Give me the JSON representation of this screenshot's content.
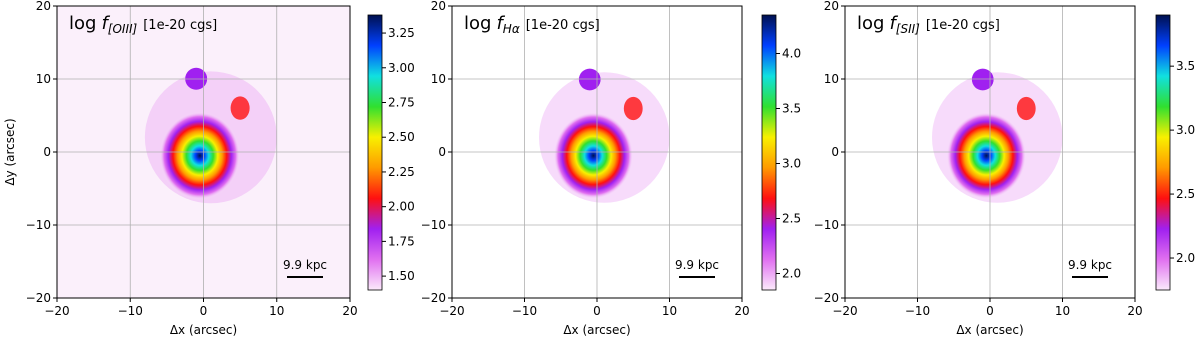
{
  "chart_data": [
    {
      "type": "heatmap",
      "title": "log",
      "symbol": "f",
      "subscript": "[OIII]",
      "units": "[1e-20 cgs]",
      "xlabel": "Δx (arcsec)",
      "ylabel": "Δy (arcsec)",
      "annotation": "9.9 kpc",
      "xlim": [
        -20,
        20
      ],
      "ylim": [
        -20,
        20
      ],
      "xticks": [
        {
          "value": -20,
          "label": "−20"
        },
        {
          "value": -10,
          "label": "−10"
        },
        0,
        10,
        20
      ],
      "yticks": [
        {
          "value": -20,
          "label": "−20"
        },
        {
          "value": -10,
          "label": "−10"
        },
        0,
        10,
        20
      ],
      "clim": [
        1.4,
        3.38
      ],
      "cticks": [
        {
          "value": 1.5,
          "label": "1.50"
        },
        1.75,
        {
          "value": 2,
          "label": "2.00"
        },
        2.25,
        {
          "value": 2.5,
          "label": "2.50"
        },
        2.75,
        {
          "value": 3,
          "label": "3.00"
        },
        3.25
      ],
      "grid": true,
      "colormap": [
        "#fbeafb",
        "#e070f0",
        "#a020f0",
        "#ff1010",
        "#ff9a00",
        "#f8f000",
        "#30e030",
        "#10e0e0",
        "#0040ff",
        "#001050"
      ]
    },
    {
      "type": "heatmap",
      "title": "log",
      "symbol": "f",
      "subscript": "Hα",
      "units": "[1e-20 cgs]",
      "xlabel": "Δx (arcsec)",
      "annotation": "9.9 kpc",
      "xlim": [
        -20,
        20
      ],
      "ylim": [
        -20,
        20
      ],
      "xticks": [
        {
          "value": -20,
          "label": "−20"
        },
        {
          "value": -10,
          "label": "−10"
        },
        0,
        10,
        20
      ],
      "yticks": [
        {
          "value": -20,
          "label": "−20"
        },
        {
          "value": -10,
          "label": "−10"
        },
        0,
        10,
        20
      ],
      "clim": [
        1.85,
        4.35
      ],
      "cticks": [
        {
          "value": 2,
          "label": "2.0"
        },
        2.5,
        {
          "value": 3,
          "label": "3.0"
        },
        3.5,
        {
          "value": 4,
          "label": "4.0"
        }
      ],
      "grid": true,
      "colormap": [
        "#fbeafb",
        "#e070f0",
        "#a020f0",
        "#ff1010",
        "#ff9a00",
        "#f8f000",
        "#30e030",
        "#10e0e0",
        "#0040ff",
        "#001050"
      ]
    },
    {
      "type": "heatmap",
      "title": "log",
      "symbol": "f",
      "subscript": "[SII]",
      "units": "[1e-20 cgs]",
      "xlabel": "Δx (arcsec)",
      "annotation": "9.9 kpc",
      "xlim": [
        -20,
        20
      ],
      "ylim": [
        -20,
        20
      ],
      "xticks": [
        {
          "value": -20,
          "label": "−20"
        },
        {
          "value": -10,
          "label": "−10"
        },
        0,
        10,
        20
      ],
      "yticks": [
        {
          "value": -20,
          "label": "−20"
        },
        {
          "value": -10,
          "label": "−10"
        },
        0,
        10,
        20
      ],
      "clim": [
        1.75,
        3.9
      ],
      "cticks": [
        {
          "value": 2,
          "label": "2.0"
        },
        2.5,
        {
          "value": 3,
          "label": "3.0"
        },
        3.5
      ],
      "grid": true,
      "colormap": [
        "#fbeafb",
        "#e070f0",
        "#a020f0",
        "#ff1010",
        "#ff9a00",
        "#f8f000",
        "#30e030",
        "#10e0e0",
        "#0040ff",
        "#001050"
      ]
    }
  ]
}
